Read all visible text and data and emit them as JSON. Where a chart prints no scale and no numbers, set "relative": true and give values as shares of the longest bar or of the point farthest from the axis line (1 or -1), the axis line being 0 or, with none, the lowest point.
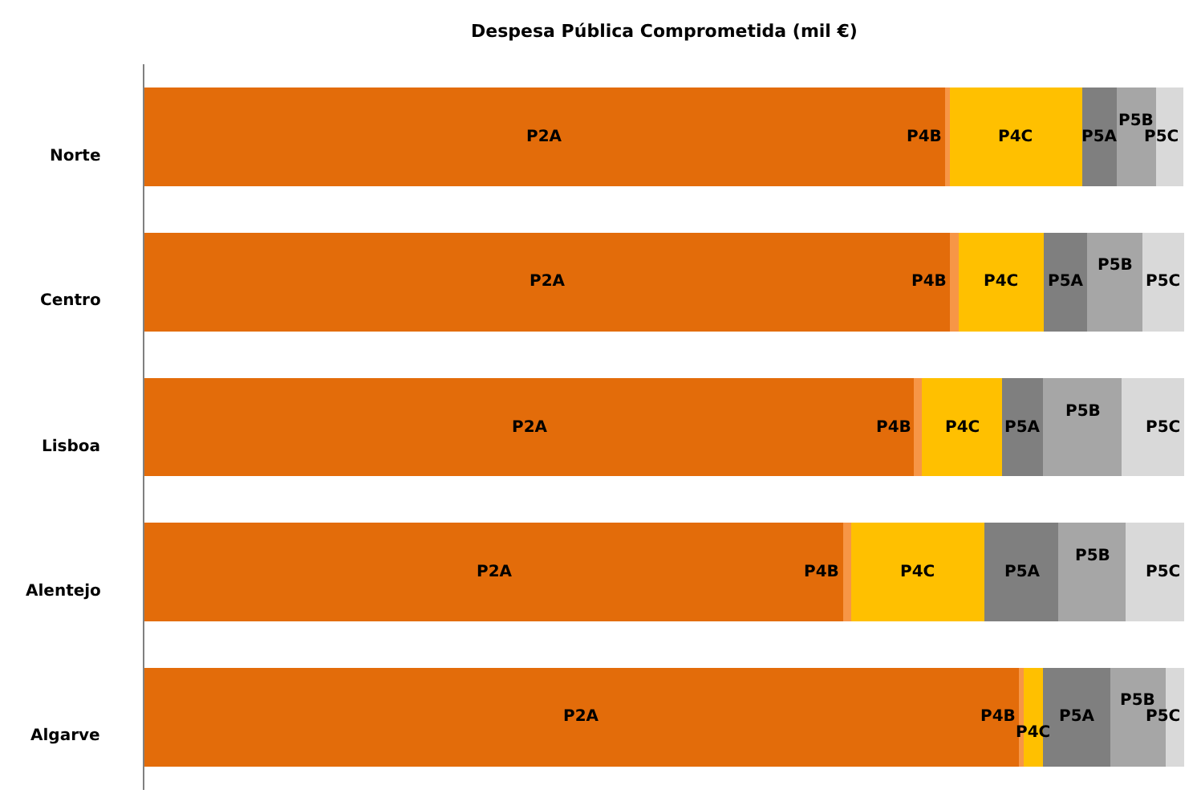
{
  "chart_data": {
    "type": "bar",
    "title": "Despesa Pública Comprometida (mil €)",
    "orientation": "horizontal",
    "stacked": true,
    "relative": true,
    "legend": false,
    "categories": [
      "Norte",
      "Centro",
      "Lisboa",
      "Alentejo",
      "Algarve"
    ],
    "series": [
      {
        "name": "P2A",
        "color": "#e36c0a",
        "values": [
          0.77,
          0.775,
          0.74,
          0.672,
          0.841
        ]
      },
      {
        "name": "P4B",
        "color": "#f79646",
        "values": [
          0.005,
          0.008,
          0.008,
          0.008,
          0.005
        ]
      },
      {
        "name": "P4C",
        "color": "#ffc000",
        "values": [
          0.127,
          0.082,
          0.077,
          0.128,
          0.018
        ]
      },
      {
        "name": "P5A",
        "color": "#7f7f7f",
        "values": [
          0.033,
          0.042,
          0.039,
          0.071,
          0.065
        ]
      },
      {
        "name": "P5B",
        "color": "#a6a6a6",
        "values": [
          0.038,
          0.053,
          0.076,
          0.065,
          0.053
        ]
      },
      {
        "name": "P5C",
        "color": "#d9d9d9",
        "values": [
          0.026,
          0.04,
          0.06,
          0.056,
          0.018
        ]
      }
    ]
  }
}
